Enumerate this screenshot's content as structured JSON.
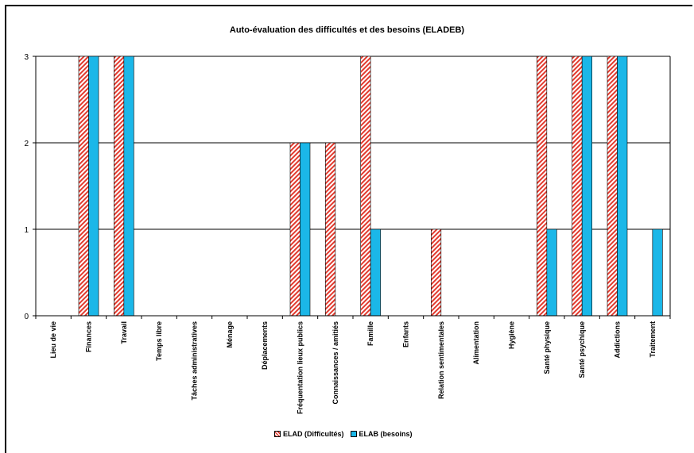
{
  "chart_data": {
    "type": "bar",
    "title": "Auto-évaluation des difficultés et des besoins (ELADEB)",
    "xlabel": "",
    "ylabel": "",
    "ylim": [
      0,
      3
    ],
    "yticks": [
      "0",
      "1",
      "2",
      "3"
    ],
    "grid": true,
    "legend_position": "bottom",
    "categories": [
      "Lieu de vie",
      "Finances",
      "Travail",
      "Temps libre",
      "Tâches administratives",
      "Ménage",
      "Déplacements",
      "Fréquentation lieux publics",
      "Connaissances / amitiés",
      "Famille",
      "Enfants",
      "Relation sentimentales",
      "Alimentation",
      "Hygiène",
      "Santé physique",
      "Santé psychique",
      "Addictions",
      "Traitement"
    ],
    "series": [
      {
        "name": "ELAD (Difficultés)",
        "color": "#e23a2e",
        "pattern": "hatched",
        "values": [
          0,
          3,
          3,
          0,
          0,
          0,
          0,
          2,
          2,
          3,
          0,
          1,
          0,
          0,
          3,
          3,
          3,
          0
        ]
      },
      {
        "name": "ELAB (besoins)",
        "color": "#1bb7e8",
        "pattern": "solid",
        "values": [
          0,
          3,
          3,
          0,
          0,
          0,
          0,
          2,
          0,
          1,
          0,
          0,
          0,
          0,
          1,
          3,
          3,
          1
        ]
      }
    ]
  }
}
